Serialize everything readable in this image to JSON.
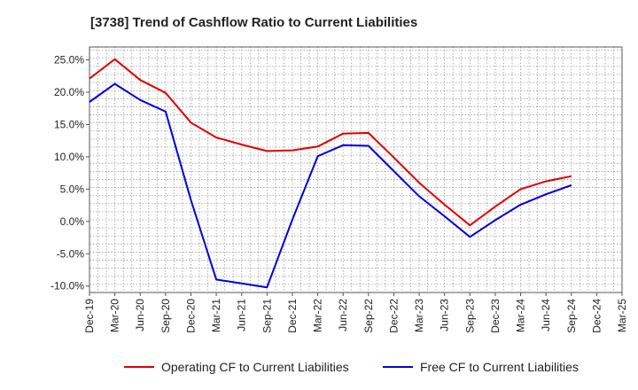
{
  "chart_data": {
    "type": "line",
    "title": "[3738]  Trend of Cashflow Ratio to Current Liabilities",
    "xlabel": "",
    "ylabel": "",
    "x": [
      "Dec-19",
      "Mar-20",
      "Jun-20",
      "Sep-20",
      "Dec-20",
      "Mar-21",
      "Jun-21",
      "Sep-21",
      "Dec-21",
      "Mar-22",
      "Jun-22",
      "Sep-22",
      "Dec-22",
      "Mar-23",
      "Jun-23",
      "Sep-23",
      "Dec-23",
      "Mar-24",
      "Jun-24",
      "Sep-24",
      "Dec-24",
      "Mar-25"
    ],
    "ylim": [
      -11,
      27
    ],
    "yticks": [
      -10,
      -5,
      0,
      5,
      10,
      15,
      20,
      25
    ],
    "ytick_labels": [
      "-10.0%",
      "-5.0%",
      "0.0%",
      "5.0%",
      "10.0%",
      "15.0%",
      "20.0%",
      "25.0%"
    ],
    "grid": true,
    "legend_position": "bottom",
    "series": [
      {
        "name": "Operating CF to Current Liabilities",
        "color": "#e00000",
        "values": [
          22.1,
          25.1,
          21.9,
          19.9,
          15.3,
          13.0,
          11.9,
          10.9,
          11.0,
          11.6,
          13.6,
          13.7,
          9.9,
          6.0,
          2.6,
          -0.6,
          2.3,
          5.0,
          6.2,
          7.0,
          null,
          null
        ]
      },
      {
        "name": "Free CF to Current Liabilities",
        "color": "#0000dd",
        "values": [
          18.5,
          21.3,
          18.8,
          17.0,
          3.3,
          -9.0,
          -9.6,
          -10.2,
          0.3,
          10.1,
          11.8,
          11.7,
          7.8,
          3.9,
          0.8,
          -2.4,
          0.2,
          2.6,
          4.2,
          5.6,
          null,
          null
        ]
      }
    ]
  }
}
